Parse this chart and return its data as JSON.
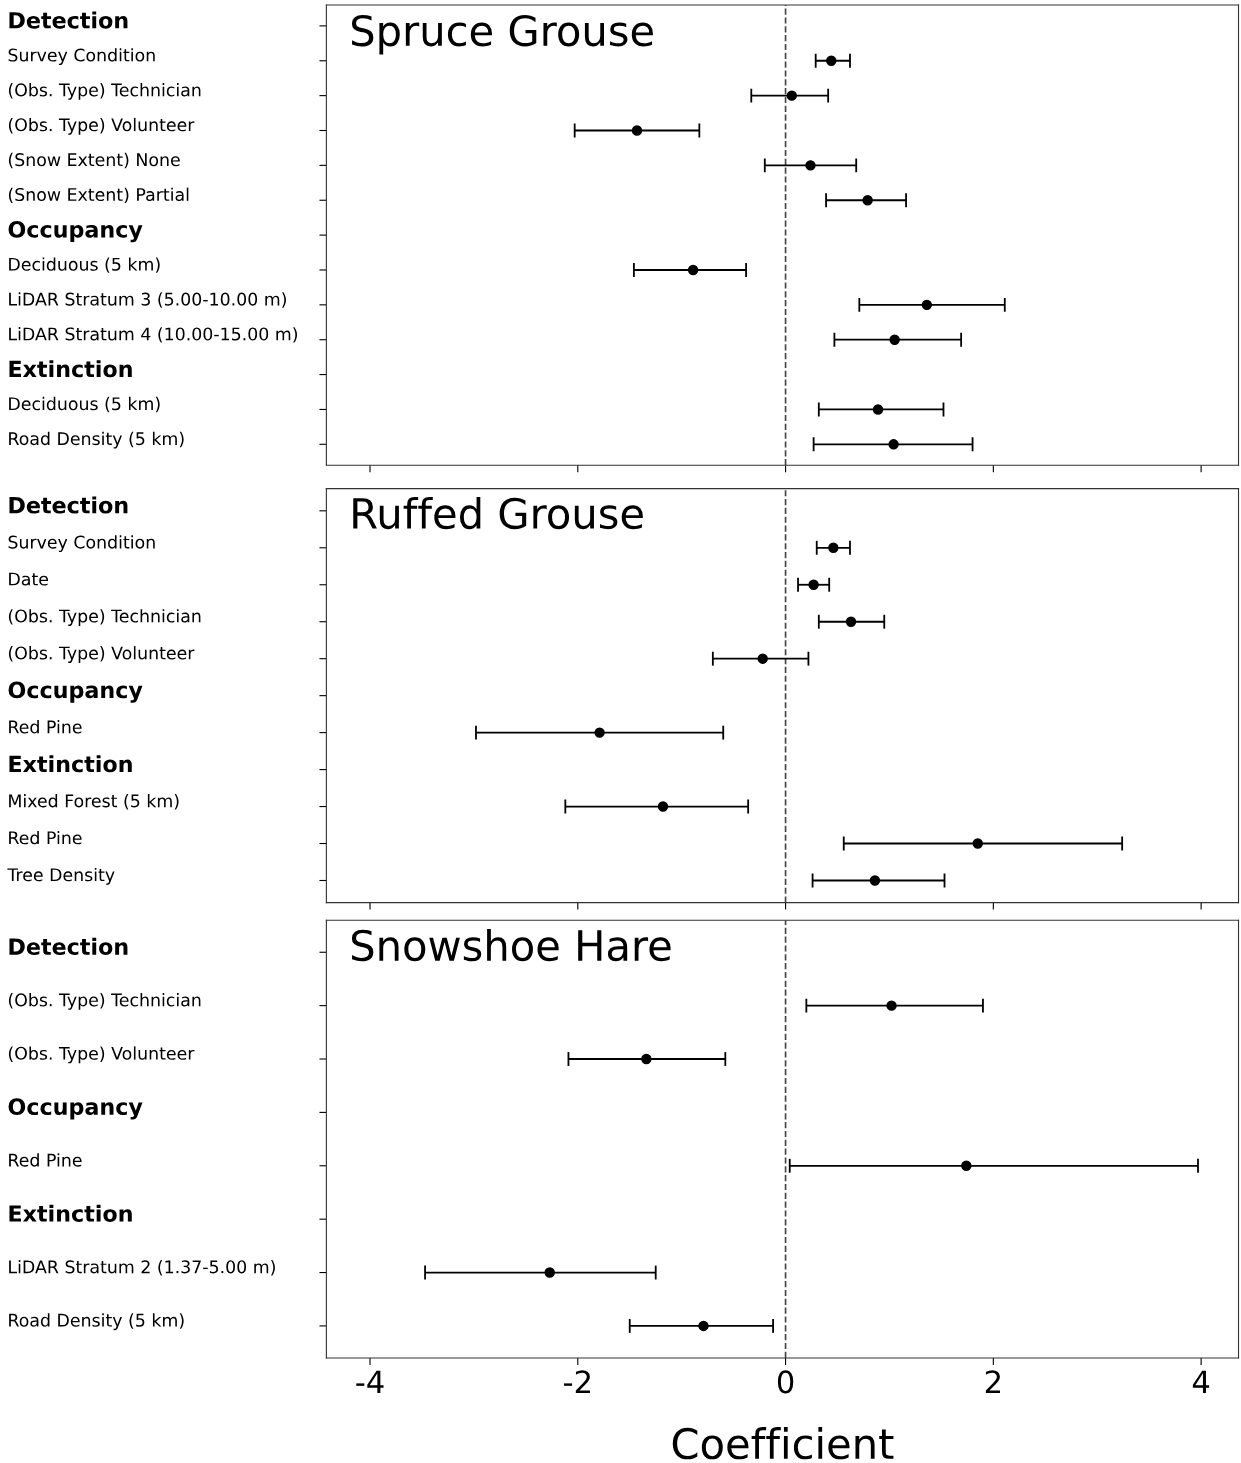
{
  "chart_data": [
    {
      "type": "scatter",
      "orientation": "horizontal",
      "title": "Spruce Grouse",
      "categories": [
        "Detection",
        "Survey Condition",
        "(Obs. Type) Technician",
        "(Obs. Type) Volunteer",
        "(Snow Extent) None",
        "(Snow Extent) Partial",
        "Occupancy",
        "Deciduous (5 km)",
        "LiDAR Stratum 3 (5.00-10.00 m)",
        "LiDAR Stratum 4 (10.00-15.00 m)",
        "Extinction",
        "Deciduous (5 km)",
        "Road Density (5 km)"
      ],
      "values": [
        null,
        0.44,
        0.06,
        -1.43,
        0.24,
        0.79,
        null,
        -0.89,
        1.36,
        1.05,
        null,
        0.89,
        1.04
      ],
      "errors": [
        null,
        [
          0.29,
          0.62
        ],
        [
          -0.33,
          0.41
        ],
        [
          -2.03,
          -0.83
        ],
        [
          -0.2,
          0.68
        ],
        [
          0.39,
          1.16
        ],
        null,
        [
          -1.46,
          -0.38
        ],
        [
          0.71,
          2.11
        ],
        [
          0.47,
          1.69
        ],
        null,
        [
          0.32,
          1.52
        ],
        [
          0.27,
          1.8
        ]
      ],
      "color": "#000000",
      "marker": "circle",
      "xlim": [
        -4.42,
        4.36
      ],
      "xticks": [
        -4,
        -2,
        0,
        2,
        4
      ],
      "tick_labels": "y",
      "grid": false,
      "ref_lines": [
        {
          "axis": "x",
          "value": 0,
          "line_style": "dashed",
          "color": "#444444"
        }
      ]
    },
    {
      "type": "scatter",
      "orientation": "horizontal",
      "title": "Ruffed Grouse",
      "categories": [
        "Detection",
        "Survey Condition",
        "Date",
        "(Obs. Type) Technician",
        "(Obs. Type) Volunteer",
        "Occupancy",
        "Red Pine",
        "Extinction",
        "Mixed Forest (5 km)",
        "Red Pine",
        "Tree Density"
      ],
      "values": [
        null,
        0.46,
        0.27,
        0.63,
        -0.22,
        null,
        -1.79,
        null,
        -1.18,
        1.85,
        0.86
      ],
      "errors": [
        null,
        [
          0.3,
          0.62
        ],
        [
          0.12,
          0.42
        ],
        [
          0.32,
          0.95
        ],
        [
          -0.7,
          0.22
        ],
        null,
        [
          -2.98,
          -0.6
        ],
        null,
        [
          -2.12,
          -0.36
        ],
        [
          0.56,
          3.24
        ],
        [
          0.26,
          1.53
        ]
      ],
      "color": "#000000",
      "marker": "circle",
      "xlim": [
        -4.42,
        4.36
      ],
      "xticks": [
        -4,
        -2,
        0,
        2,
        4
      ],
      "tick_labels": "y",
      "grid": false,
      "ref_lines": [
        {
          "axis": "x",
          "value": 0,
          "line_style": "dashed",
          "color": "#444444"
        }
      ]
    },
    {
      "type": "scatter",
      "orientation": "horizontal",
      "title": "Snowshoe Hare",
      "xlabel": "Coefficient",
      "categories": [
        "Detection",
        "(Obs. Type) Technician",
        "(Obs. Type) Volunteer",
        "Occupancy",
        "Red Pine",
        "Extinction",
        "LiDAR Stratum 2 (1.37-5.00 m)",
        "Road Density (5 km)"
      ],
      "values": [
        null,
        1.02,
        -1.34,
        null,
        1.74,
        null,
        -2.27,
        -0.79
      ],
      "errors": [
        null,
        [
          0.2,
          1.9
        ],
        [
          -2.09,
          -0.58
        ],
        null,
        [
          0.04,
          3.97
        ],
        null,
        [
          -3.47,
          -1.25
        ],
        [
          -1.5,
          -0.12
        ]
      ],
      "color": "#000000",
      "marker": "circle",
      "xlim": [
        -4.42,
        4.36
      ],
      "xticks": [
        -4,
        -2,
        0,
        2,
        4
      ],
      "grid": false,
      "ref_lines": [
        {
          "axis": "x",
          "value": 0,
          "line_style": "dashed",
          "color": "#444444"
        }
      ]
    }
  ]
}
